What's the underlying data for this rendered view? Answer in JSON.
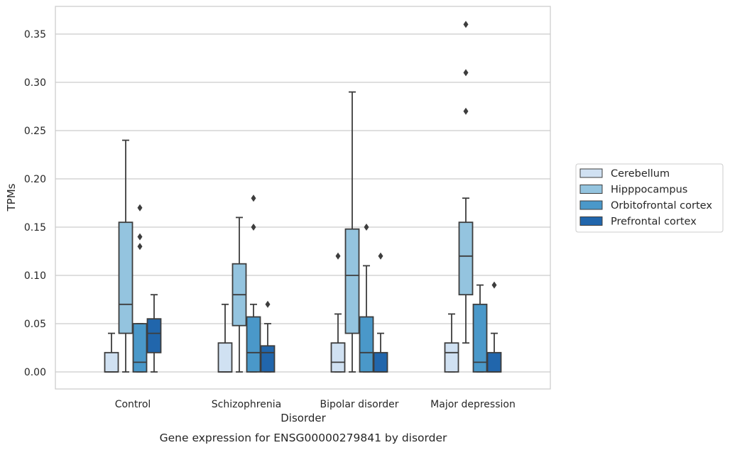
{
  "chart_data": {
    "type": "boxplot",
    "xlabel": "Disorder",
    "ylabel": "TPMs",
    "caption": "Gene expression for ENSG00000279841 by disorder",
    "categories": [
      "Control",
      "Schizophrenia",
      "Bipolar disorder",
      "Major depression"
    ],
    "ylim": [
      -0.017,
      0.378
    ],
    "yticks": [
      "0.00",
      "0.05",
      "0.10",
      "0.15",
      "0.20",
      "0.25",
      "0.30",
      "0.35"
    ],
    "grid": "horizontal",
    "legend_position": "right",
    "series": [
      {
        "name": "Cerebellum",
        "color": "#d0e1f2",
        "boxes": [
          {
            "min": 0.0,
            "q1": 0.0,
            "median": 0.0,
            "q3": 0.02,
            "max": 0.04,
            "outliers": []
          },
          {
            "min": 0.0,
            "q1": 0.0,
            "median": 0.0,
            "q3": 0.03,
            "max": 0.07,
            "outliers": []
          },
          {
            "min": 0.0,
            "q1": 0.0,
            "median": 0.01,
            "q3": 0.03,
            "max": 0.06,
            "outliers": [
              0.12
            ]
          },
          {
            "min": 0.0,
            "q1": 0.0,
            "median": 0.02,
            "q3": 0.03,
            "max": 0.06,
            "outliers": []
          }
        ]
      },
      {
        "name": "Hipppocampus",
        "color": "#94c4df",
        "boxes": [
          {
            "min": 0.0,
            "q1": 0.04,
            "median": 0.07,
            "q3": 0.155,
            "max": 0.24,
            "outliers": []
          },
          {
            "min": 0.0,
            "q1": 0.048,
            "median": 0.08,
            "q3": 0.112,
            "max": 0.16,
            "outliers": []
          },
          {
            "min": 0.0,
            "q1": 0.04,
            "median": 0.1,
            "q3": 0.148,
            "max": 0.29,
            "outliers": []
          },
          {
            "min": 0.03,
            "q1": 0.08,
            "median": 0.12,
            "q3": 0.155,
            "max": 0.18,
            "outliers": [
              0.27,
              0.31,
              0.36
            ]
          }
        ]
      },
      {
        "name": "Orbitofrontal cortex",
        "color": "#4a98c9",
        "boxes": [
          {
            "min": 0.0,
            "q1": 0.0,
            "median": 0.01,
            "q3": 0.05,
            "max": 0.05,
            "outliers": [
              0.13,
              0.14,
              0.17
            ]
          },
          {
            "min": 0.0,
            "q1": 0.0,
            "median": 0.02,
            "q3": 0.057,
            "max": 0.07,
            "outliers": [
              0.15,
              0.18
            ]
          },
          {
            "min": 0.0,
            "q1": 0.0,
            "median": 0.02,
            "q3": 0.057,
            "max": 0.11,
            "outliers": [
              0.15
            ]
          },
          {
            "min": 0.0,
            "q1": 0.0,
            "median": 0.01,
            "q3": 0.07,
            "max": 0.09,
            "outliers": []
          }
        ]
      },
      {
        "name": "Prefrontal cortex",
        "color": "#2166ac",
        "boxes": [
          {
            "min": 0.0,
            "q1": 0.02,
            "median": 0.04,
            "q3": 0.055,
            "max": 0.08,
            "outliers": []
          },
          {
            "min": 0.0,
            "q1": 0.0,
            "median": 0.02,
            "q3": 0.027,
            "max": 0.05,
            "outliers": [
              0.07
            ]
          },
          {
            "min": 0.0,
            "q1": 0.0,
            "median": 0.0,
            "q3": 0.02,
            "max": 0.04,
            "outliers": [
              0.12
            ]
          },
          {
            "min": 0.0,
            "q1": 0.0,
            "median": 0.0,
            "q3": 0.02,
            "max": 0.04,
            "outliers": [
              0.09
            ]
          }
        ]
      }
    ]
  },
  "colors": {
    "grid": "#cccccc",
    "frame": "#cccccc",
    "box_edge": "#3d3d3d"
  }
}
